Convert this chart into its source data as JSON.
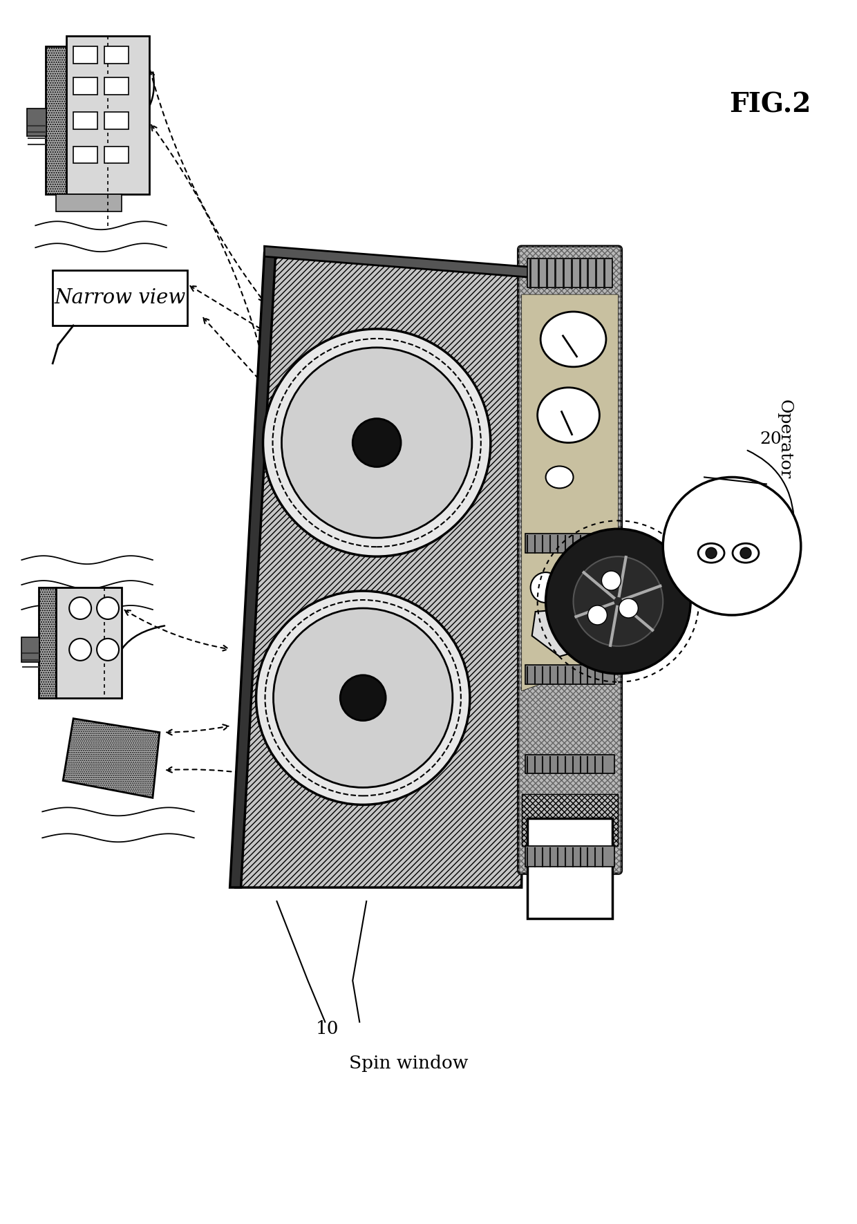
{
  "title": "FIG.2",
  "label_spin_window": "Spin window",
  "label_spin_number": "10",
  "label_operator": "Operator",
  "label_operator_number": "20",
  "label_narrow_view": "Narrow view",
  "bg_color": "#ffffff",
  "line_color": "#000000",
  "gray_light": "#d8d8d8",
  "gray_medium": "#aaaaaa",
  "gray_dark": "#666666",
  "gray_vdark": "#333333"
}
